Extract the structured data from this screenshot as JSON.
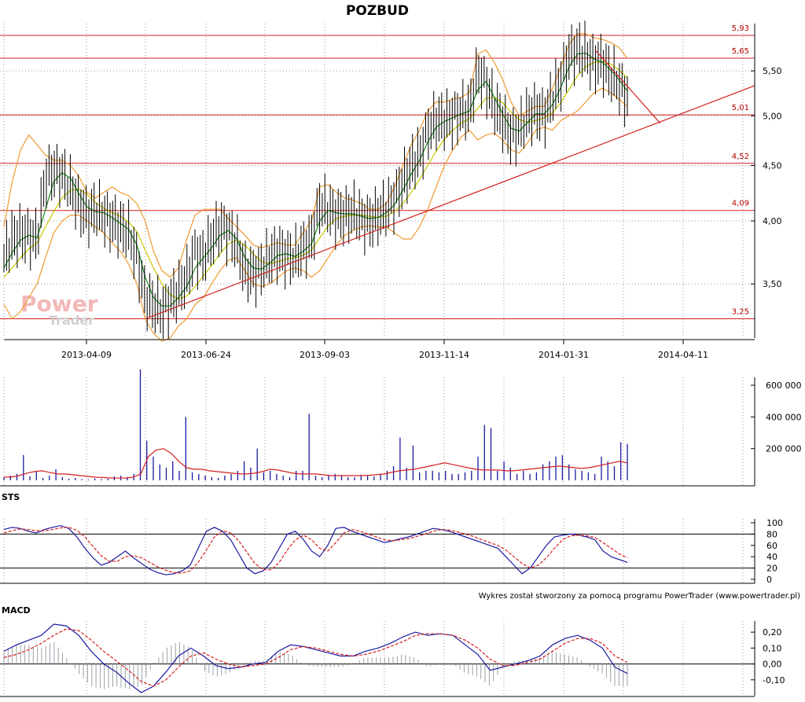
{
  "chart_data": [
    {
      "type": "line",
      "panel": "price",
      "title": "POZBUD",
      "scale": "log",
      "ylim": [
        3.12,
        6.05
      ],
      "y_ticks": [
        "3,50",
        "4,00",
        "4,50",
        "5,00",
        "5,50"
      ],
      "y_tick_values": [
        3.5,
        4.0,
        4.5,
        5.0,
        5.5
      ],
      "x_ticks": [
        "2013-04-09",
        "2013-06-24",
        "2013-09-03",
        "2013-11-14",
        "2014-01-31",
        "2014-04-11"
      ],
      "grid": true,
      "levels": [
        {
          "label": "5,93",
          "value": 5.93
        },
        {
          "label": "5,65",
          "value": 5.65
        },
        {
          "label": "5,01",
          "value": 5.01
        },
        {
          "label": "4,52",
          "value": 4.52
        },
        {
          "label": "4,09",
          "value": 4.09
        },
        {
          "label": "3,25",
          "value": 3.25
        }
      ],
      "series": [
        {
          "name": "close",
          "color": "#000000",
          "values": [
            3.7,
            3.85,
            3.9,
            3.88,
            3.85,
            4.4,
            4.45,
            4.42,
            4.3,
            4.15,
            4.05,
            4.1,
            4.05,
            4.0,
            3.95,
            3.9,
            3.7,
            3.4,
            3.35,
            3.3,
            3.38,
            3.45,
            3.55,
            3.75,
            3.7,
            3.85,
            3.95,
            3.92,
            3.8,
            3.6,
            3.58,
            3.62,
            3.7,
            3.75,
            3.72,
            3.7,
            3.78,
            3.85,
            4.15,
            4.1,
            4.05,
            4.05,
            4.08,
            4.02,
            4.0,
            4.05,
            4.1,
            4.2,
            4.35,
            4.5,
            4.6,
            4.85,
            4.95,
            4.95,
            5.0,
            5.05,
            5.05,
            5.5,
            5.35,
            5.1,
            4.95,
            4.8,
            4.85,
            5.0,
            5.05,
            5.0,
            5.2,
            5.4,
            5.7,
            5.75,
            5.7,
            5.6,
            5.6,
            5.45,
            5.35,
            5.2
          ]
        },
        {
          "name": "ma-short",
          "color": "#1a8a1a",
          "values": [
            3.62,
            3.74,
            3.84,
            3.88,
            3.86,
            4.1,
            4.35,
            4.43,
            4.38,
            4.24,
            4.12,
            4.08,
            4.07,
            4.03,
            3.98,
            3.93,
            3.8,
            3.55,
            3.4,
            3.34,
            3.34,
            3.4,
            3.48,
            3.62,
            3.7,
            3.78,
            3.88,
            3.92,
            3.85,
            3.7,
            3.62,
            3.61,
            3.66,
            3.72,
            3.73,
            3.71,
            3.75,
            3.81,
            4.0,
            4.09,
            4.07,
            4.06,
            4.06,
            4.04,
            4.02,
            4.03,
            4.07,
            4.14,
            4.27,
            4.42,
            4.55,
            4.73,
            4.88,
            4.94,
            4.98,
            5.02,
            5.05,
            5.28,
            5.38,
            5.2,
            5.02,
            4.87,
            4.84,
            4.93,
            5.02,
            5.02,
            5.12,
            5.31,
            5.55,
            5.7,
            5.71,
            5.64,
            5.6,
            5.51,
            5.4,
            5.27
          ]
        },
        {
          "name": "ma-long",
          "color": "#c8c800",
          "values": [
            3.55,
            3.62,
            3.7,
            3.77,
            3.82,
            3.95,
            4.08,
            4.2,
            4.27,
            4.28,
            4.23,
            4.16,
            4.11,
            4.07,
            4.04,
            3.99,
            3.91,
            3.76,
            3.62,
            3.5,
            3.42,
            3.39,
            3.41,
            3.48,
            3.56,
            3.64,
            3.73,
            3.81,
            3.84,
            3.8,
            3.73,
            3.67,
            3.65,
            3.67,
            3.69,
            3.7,
            3.72,
            3.76,
            3.86,
            3.96,
            4.02,
            4.04,
            4.05,
            4.05,
            4.04,
            4.03,
            4.04,
            4.08,
            4.15,
            4.25,
            4.37,
            4.5,
            4.64,
            4.76,
            4.85,
            4.92,
            4.97,
            5.08,
            5.19,
            5.2,
            5.14,
            5.04,
            4.96,
            4.93,
            4.95,
            4.98,
            5.03,
            5.14,
            5.29,
            5.44,
            5.55,
            5.6,
            5.61,
            5.58,
            5.51,
            5.42
          ]
        },
        {
          "name": "bollinger-upper",
          "color": "#f09a30",
          "values": [
            3.95,
            4.35,
            4.65,
            4.8,
            4.7,
            4.6,
            4.55,
            4.55,
            4.5,
            4.4,
            4.25,
            4.2,
            4.25,
            4.3,
            4.25,
            4.22,
            4.15,
            4.0,
            3.75,
            3.6,
            3.55,
            3.62,
            3.85,
            4.05,
            4.1,
            4.1,
            4.1,
            4.02,
            3.95,
            3.88,
            3.8,
            3.78,
            3.8,
            3.82,
            3.8,
            3.8,
            3.9,
            4.0,
            4.3,
            4.32,
            4.25,
            4.2,
            4.18,
            4.15,
            4.1,
            4.1,
            4.15,
            4.3,
            4.5,
            4.7,
            4.85,
            5.05,
            5.15,
            5.15,
            5.18,
            5.2,
            5.25,
            5.7,
            5.75,
            5.6,
            5.4,
            5.15,
            5.0,
            5.05,
            5.1,
            5.1,
            5.3,
            5.55,
            5.82,
            5.95,
            5.95,
            5.9,
            5.88,
            5.84,
            5.78,
            5.65
          ]
        },
        {
          "name": "bollinger-lower",
          "color": "#f09a30",
          "values": [
            3.35,
            3.25,
            3.3,
            3.4,
            3.5,
            3.7,
            3.9,
            4.0,
            4.05,
            4.05,
            4.0,
            3.95,
            3.9,
            3.82,
            3.75,
            3.65,
            3.5,
            3.25,
            3.15,
            3.1,
            3.12,
            3.2,
            3.25,
            3.35,
            3.4,
            3.5,
            3.6,
            3.68,
            3.7,
            3.6,
            3.5,
            3.48,
            3.5,
            3.55,
            3.6,
            3.62,
            3.6,
            3.55,
            3.6,
            3.7,
            3.8,
            3.88,
            3.92,
            3.95,
            3.96,
            3.95,
            3.95,
            3.9,
            3.85,
            3.85,
            3.95,
            4.1,
            4.3,
            4.5,
            4.65,
            4.78,
            4.85,
            4.75,
            4.8,
            4.82,
            4.75,
            4.65,
            4.62,
            4.72,
            4.85,
            4.88,
            4.85,
            4.95,
            5.0,
            5.05,
            5.15,
            5.25,
            5.3,
            5.25,
            5.18,
            5.1
          ]
        }
      ]
    },
    {
      "type": "bar",
      "panel": "volume",
      "y_ticks": [
        "200 000",
        "400 000",
        "600 000"
      ],
      "y_tick_values": [
        200000,
        400000,
        600000
      ],
      "ylim": [
        0,
        650000
      ],
      "volume_values": [
        20000,
        30000,
        40000,
        160000,
        25000,
        60000,
        15000,
        30000,
        70000,
        20000,
        10000,
        15000,
        8000,
        5000,
        12000,
        8000,
        10000,
        25000,
        30000,
        20000,
        40000,
        700000,
        250000,
        150000,
        100000,
        80000,
        120000,
        60000,
        400000,
        50000,
        40000,
        30000,
        20000,
        15000,
        30000,
        40000,
        60000,
        120000,
        80000,
        200000,
        50000,
        60000,
        40000,
        30000,
        20000,
        60000,
        60000,
        420000,
        30000,
        20000,
        30000,
        40000,
        30000,
        20000,
        20000,
        35000,
        30000,
        25000,
        40000,
        60000,
        90000,
        270000,
        80000,
        220000,
        50000,
        60000,
        60000,
        50000,
        60000,
        40000,
        40000,
        50000,
        60000,
        150000,
        350000,
        330000,
        60000,
        120000,
        80000,
        40000,
        60000,
        40000,
        50000,
        100000,
        120000,
        150000,
        160000,
        100000,
        70000,
        60000,
        50000,
        40000,
        150000,
        120000,
        90000,
        240000,
        230000
      ],
      "series": [
        {
          "name": "volume-ma",
          "color": "#d42020",
          "values": [
            20000,
            22000,
            30000,
            45000,
            55000,
            60000,
            50000,
            40000,
            40000,
            35000,
            30000,
            25000,
            20000,
            18000,
            15000,
            14000,
            15000,
            20000,
            40000,
            150000,
            190000,
            200000,
            170000,
            120000,
            80000,
            70000,
            70000,
            60000,
            55000,
            50000,
            45000,
            40000,
            40000,
            45000,
            55000,
            70000,
            65000,
            55000,
            45000,
            40000,
            40000,
            40000,
            35000,
            30000,
            30000,
            30000,
            30000,
            30000,
            32000,
            35000,
            40000,
            50000,
            60000,
            65000,
            70000,
            80000,
            90000,
            100000,
            110000,
            100000,
            90000,
            80000,
            70000,
            65000,
            65000,
            65000,
            60000,
            60000,
            65000,
            70000,
            75000,
            80000,
            85000,
            90000,
            85000,
            80000,
            75000,
            80000,
            90000,
            100000,
            110000,
            120000,
            110000
          ]
        }
      ]
    },
    {
      "type": "line",
      "panel": "oscillator",
      "label": "STS",
      "y_ticks": [
        "0",
        "20",
        "40",
        "60",
        "80",
        "100"
      ],
      "y_tick_values": [
        0,
        20,
        40,
        60,
        80,
        100
      ],
      "ylim": [
        0,
        100
      ],
      "levels": [
        20,
        80
      ],
      "series": [
        {
          "name": "k",
          "color": "#1a1aa0",
          "values": [
            88,
            92,
            90,
            85,
            82,
            88,
            92,
            95,
            90,
            75,
            55,
            38,
            25,
            30,
            40,
            50,
            38,
            28,
            18,
            12,
            8,
            10,
            15,
            25,
            55,
            85,
            92,
            85,
            70,
            45,
            20,
            10,
            15,
            30,
            55,
            80,
            85,
            70,
            50,
            40,
            60,
            90,
            92,
            85,
            80,
            75,
            70,
            65,
            68,
            72,
            75,
            80,
            85,
            90,
            88,
            85,
            80,
            75,
            70,
            65,
            60,
            55,
            40,
            25,
            10,
            20,
            40,
            60,
            75,
            78,
            80,
            78,
            75,
            70,
            50,
            40,
            35,
            30
          ]
        },
        {
          "name": "d",
          "color": "#d42020",
          "values": [
            82,
            86,
            89,
            88,
            86,
            86,
            88,
            91,
            92,
            87,
            75,
            58,
            42,
            32,
            32,
            40,
            42,
            38,
            30,
            22,
            16,
            12,
            11,
            15,
            30,
            52,
            75,
            86,
            82,
            68,
            48,
            28,
            17,
            17,
            30,
            52,
            70,
            78,
            70,
            55,
            50,
            65,
            82,
            88,
            85,
            80,
            75,
            70,
            68,
            70,
            72,
            76,
            80,
            85,
            88,
            87,
            84,
            80,
            76,
            70,
            65,
            60,
            52,
            40,
            28,
            20,
            25,
            38,
            55,
            70,
            77,
            78,
            77,
            74,
            65,
            55,
            45,
            38
          ]
        }
      ]
    },
    {
      "type": "line",
      "panel": "oscillator",
      "label": "MACD",
      "y_ticks": [
        "-0,10",
        "0,00",
        "0,10",
        "0,20"
      ],
      "y_tick_values": [
        -0.1,
        0.0,
        0.1,
        0.2
      ],
      "ylim": [
        -0.2,
        0.27
      ],
      "series": [
        {
          "name": "macd",
          "color": "#1a1aa0",
          "values": [
            0.08,
            0.12,
            0.15,
            0.18,
            0.25,
            0.24,
            0.18,
            0.08,
            0.0,
            -0.05,
            -0.12,
            -0.18,
            -0.14,
            -0.05,
            0.05,
            0.1,
            0.05,
            -0.01,
            -0.03,
            -0.02,
            0.0,
            0.01,
            0.08,
            0.12,
            0.11,
            0.09,
            0.07,
            0.05,
            0.05,
            0.08,
            0.1,
            0.13,
            0.17,
            0.2,
            0.18,
            0.19,
            0.18,
            0.12,
            0.06,
            -0.04,
            -0.02,
            0.0,
            0.02,
            0.05,
            0.12,
            0.16,
            0.18,
            0.15,
            0.1,
            -0.02,
            -0.06
          ]
        },
        {
          "name": "signal",
          "color": "#d42020",
          "values": [
            0.04,
            0.06,
            0.09,
            0.13,
            0.18,
            0.22,
            0.21,
            0.15,
            0.08,
            0.02,
            -0.04,
            -0.11,
            -0.14,
            -0.1,
            -0.02,
            0.05,
            0.07,
            0.03,
            0.0,
            -0.02,
            -0.01,
            0.0,
            0.04,
            0.09,
            0.11,
            0.1,
            0.08,
            0.06,
            0.05,
            0.06,
            0.08,
            0.11,
            0.14,
            0.18,
            0.19,
            0.19,
            0.18,
            0.15,
            0.1,
            0.03,
            -0.01,
            -0.01,
            0.01,
            0.03,
            0.08,
            0.13,
            0.16,
            0.16,
            0.13,
            0.05,
            0.01
          ]
        }
      ]
    }
  ],
  "watermark": {
    "line1": "Power",
    "line2": "Trader"
  },
  "credit": "Wykres został stworzony za pomocą programu PowerTrader (www.powertrader.pl)",
  "colors": {
    "levels": "#d42020",
    "trendline": "#d42020",
    "grid": "#999999",
    "axis": "#000000",
    "volume_bars": "#1a1aa0"
  }
}
